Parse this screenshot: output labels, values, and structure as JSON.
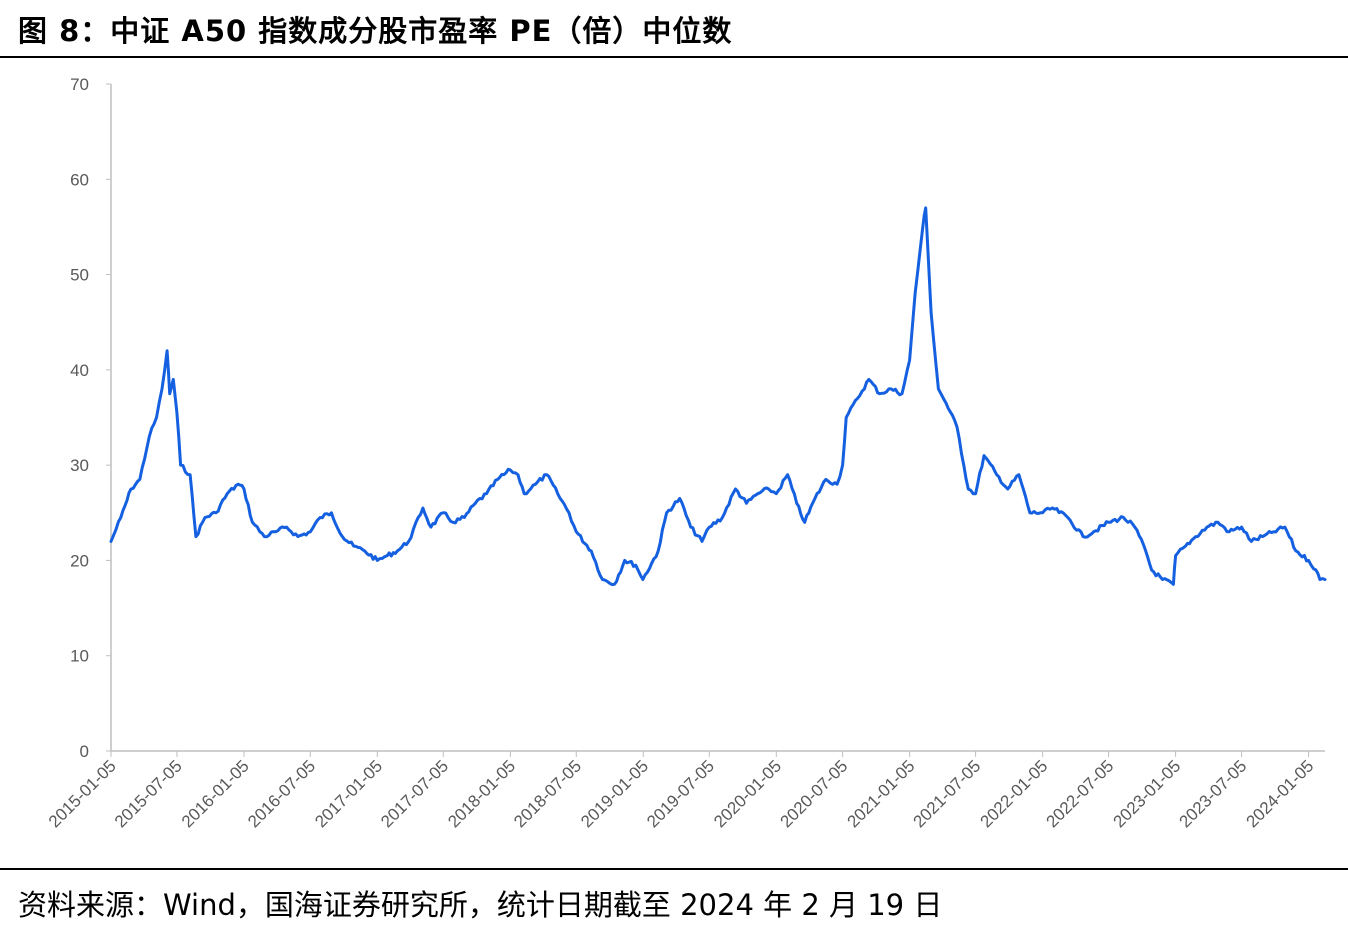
{
  "figure": {
    "title": "图 8：中证 A50 指数成分股市盈率 PE（倍）中位数",
    "source": "资料来源：Wind，国海证券研究所，统计日期截至 2024 年 2 月 19 日"
  },
  "chart_data": {
    "type": "line",
    "title": "",
    "xlabel": "",
    "ylabel": "",
    "ylim": [
      0,
      70
    ],
    "yticks": [
      0,
      10,
      20,
      30,
      40,
      50,
      60,
      70
    ],
    "xlim": [
      "2015-01-05",
      "2024-02-19"
    ],
    "xticks": [
      "2015-01-05",
      "2015-07-05",
      "2016-01-05",
      "2016-07-05",
      "2017-01-05",
      "2017-07-05",
      "2018-01-05",
      "2018-07-05",
      "2019-01-05",
      "2019-07-05",
      "2020-01-05",
      "2020-07-05",
      "2021-01-05",
      "2021-07-05",
      "2022-01-05",
      "2022-07-05",
      "2023-01-05",
      "2023-07-05",
      "2024-01-05"
    ],
    "grid": false,
    "legend": "none",
    "colors": {
      "line": "#1560E0",
      "axis": "#BFBFBF",
      "tick_text": "#595959"
    },
    "series": [
      {
        "name": "",
        "x": [
          "2015-01-05",
          "2015-02-01",
          "2015-03-01",
          "2015-03-25",
          "2015-04-20",
          "2015-05-10",
          "2015-05-25",
          "2015-06-08",
          "2015-06-15",
          "2015-06-25",
          "2015-07-05",
          "2015-07-15",
          "2015-08-10",
          "2015-08-26",
          "2015-09-20",
          "2015-10-20",
          "2015-11-20",
          "2015-12-20",
          "2016-01-05",
          "2016-01-28",
          "2016-03-01",
          "2016-04-01",
          "2016-05-01",
          "2016-06-01",
          "2016-07-05",
          "2016-08-01",
          "2016-09-01",
          "2016-10-01",
          "2016-11-01",
          "2016-12-01",
          "2017-01-05",
          "2017-02-01",
          "2017-03-01",
          "2017-04-01",
          "2017-05-10",
          "2017-06-01",
          "2017-07-05",
          "2017-08-01",
          "2017-09-01",
          "2017-10-01",
          "2017-11-01",
          "2017-12-01",
          "2018-01-05",
          "2018-01-26",
          "2018-02-12",
          "2018-03-15",
          "2018-04-15",
          "2018-05-15",
          "2018-06-15",
          "2018-07-05",
          "2018-08-15",
          "2018-09-15",
          "2018-10-18",
          "2018-11-15",
          "2018-12-15",
          "2019-01-04",
          "2019-02-15",
          "2019-03-10",
          "2019-04-15",
          "2019-05-15",
          "2019-06-15",
          "2019-07-05",
          "2019-08-10",
          "2019-09-15",
          "2019-10-15",
          "2019-11-15",
          "2019-12-15",
          "2020-01-05",
          "2020-02-05",
          "2020-03-01",
          "2020-03-23",
          "2020-04-20",
          "2020-05-20",
          "2020-06-20",
          "2020-07-05",
          "2020-07-15",
          "2020-08-15",
          "2020-09-15",
          "2020-10-15",
          "2020-11-15",
          "2020-12-15",
          "2021-01-05",
          "2021-01-20",
          "2021-02-10",
          "2021-02-18",
          "2021-03-05",
          "2021-03-25",
          "2021-04-15",
          "2021-05-15",
          "2021-06-15",
          "2021-07-05",
          "2021-07-28",
          "2021-09-01",
          "2021-10-01",
          "2021-11-01",
          "2021-12-01",
          "2022-01-05",
          "2022-02-01",
          "2022-03-15",
          "2022-04-26",
          "2022-05-25",
          "2022-07-05",
          "2022-08-15",
          "2022-09-15",
          "2022-10-15",
          "2022-10-31",
          "2022-11-30",
          "2022-12-30",
          "2023-01-05",
          "2023-02-01",
          "2023-03-01",
          "2023-04-01",
          "2023-05-01",
          "2023-06-01",
          "2023-07-05",
          "2023-08-01",
          "2023-09-01",
          "2023-10-01",
          "2023-11-01",
          "2023-12-01",
          "2024-01-05",
          "2024-01-25",
          "2024-02-05",
          "2024-02-19"
        ],
        "values": [
          22.0,
          24.5,
          27.5,
          28.5,
          33.0,
          35.0,
          38.0,
          42.0,
          37.5,
          39.0,
          35.5,
          30.0,
          29.0,
          22.5,
          24.5,
          25.0,
          27.0,
          28.0,
          27.5,
          24.0,
          22.5,
          23.0,
          23.5,
          22.5,
          23.0,
          24.5,
          25.0,
          22.5,
          21.5,
          21.0,
          20.0,
          20.5,
          21.0,
          22.0,
          25.5,
          23.5,
          25.0,
          24.0,
          24.5,
          26.0,
          27.0,
          28.5,
          29.5,
          29.0,
          27.0,
          28.0,
          29.0,
          27.0,
          25.0,
          23.0,
          21.0,
          18.0,
          17.5,
          20.0,
          19.5,
          18.0,
          21.0,
          25.0,
          26.5,
          23.5,
          22.0,
          23.5,
          24.5,
          27.5,
          26.0,
          27.0,
          27.5,
          27.0,
          29.0,
          26.0,
          24.0,
          26.5,
          28.5,
          28.0,
          30.0,
          35.0,
          37.0,
          39.0,
          37.5,
          38.0,
          37.5,
          41.0,
          48.0,
          55.0,
          57.0,
          46.0,
          38.0,
          36.5,
          34.0,
          27.5,
          27.0,
          31.0,
          29.0,
          27.5,
          29.0,
          25.0,
          25.0,
          25.5,
          24.5,
          22.5,
          23.0,
          24.0,
          24.5,
          23.5,
          21.0,
          19.0,
          18.0,
          17.5,
          20.5,
          21.5,
          22.5,
          23.5,
          24.0,
          23.0,
          23.5,
          22.0,
          22.5,
          23.0,
          23.5,
          21.0,
          20.0,
          19.0,
          18.0,
          18.0
        ]
      }
    ]
  }
}
